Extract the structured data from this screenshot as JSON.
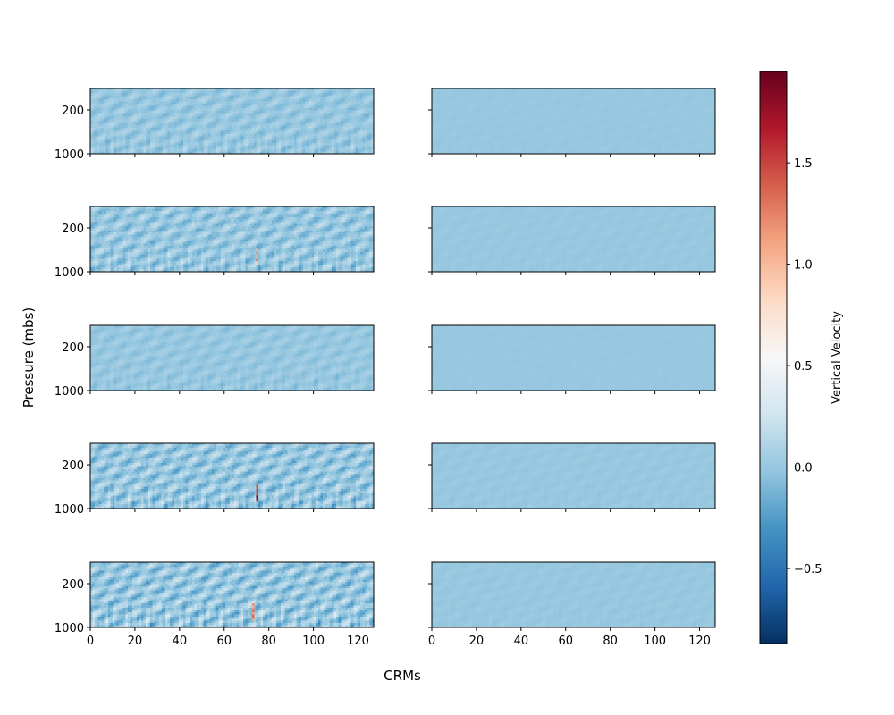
{
  "chart_data": {
    "type": "heatmap",
    "xlabel": "CRMs",
    "ylabel": "Pressure (mbs)",
    "x_ticks": [
      0,
      20,
      40,
      60,
      80,
      100,
      120
    ],
    "xlim": [
      0,
      127
    ],
    "y_ticks": [
      200,
      1000
    ],
    "colorbar": {
      "label": "Vertical Velocity",
      "colormap": "RdBu_r",
      "range": [
        -0.87,
        1.95
      ],
      "ticks": [
        -0.5,
        0.0,
        0.5,
        1.0,
        1.5
      ],
      "tick_labels": [
        "−0.5",
        "0.0",
        "0.5",
        "1.0",
        "1.5"
      ]
    },
    "layout": {
      "rows": 5,
      "cols": 2
    },
    "panels": [
      {
        "row": 0,
        "col": 0,
        "amplitude": 0.18,
        "max_value": 0.45
      },
      {
        "row": 0,
        "col": 1,
        "amplitude": 0.02,
        "max_value": 0.05
      },
      {
        "row": 1,
        "col": 0,
        "amplitude": 0.28,
        "max_value": 1.3
      },
      {
        "row": 1,
        "col": 1,
        "amplitude": 0.03,
        "max_value": 0.08
      },
      {
        "row": 2,
        "col": 0,
        "amplitude": 0.12,
        "max_value": 0.35
      },
      {
        "row": 2,
        "col": 1,
        "amplitude": 0.015,
        "max_value": 0.04
      },
      {
        "row": 3,
        "col": 0,
        "amplitude": 0.35,
        "max_value": 1.95
      },
      {
        "row": 3,
        "col": 1,
        "amplitude": 0.04,
        "max_value": 0.1
      },
      {
        "row": 4,
        "col": 0,
        "amplitude": 0.38,
        "max_value": 1.5
      },
      {
        "row": 4,
        "col": 1,
        "amplitude": 0.04,
        "max_value": 0.12
      }
    ]
  }
}
